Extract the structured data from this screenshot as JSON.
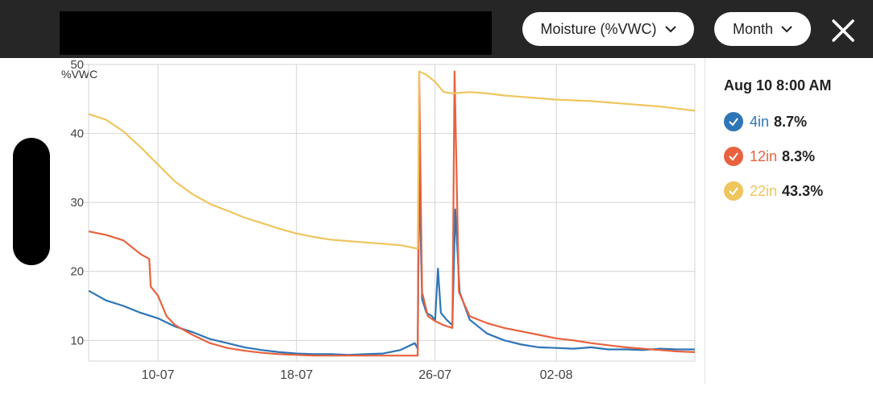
{
  "header": {
    "metric_label": "Moisture (%VWC)",
    "range_label": "Month",
    "icons": {
      "metric_chevron": "chevron-down-icon",
      "range_chevron": "chevron-down-icon",
      "close": "close-icon"
    }
  },
  "readout": {
    "time": "Aug 10 8:00 AM",
    "entries": [
      {
        "name": "4in",
        "value": "8.7%",
        "color": "#2e75b6"
      },
      {
        "name": "12in",
        "value": "8.3%",
        "color": "#e8623f"
      },
      {
        "name": "22in",
        "value": "43.3%",
        "color": "#efc55e"
      }
    ]
  },
  "chart_data": {
    "type": "line",
    "title": "",
    "xlabel": "",
    "ylabel": "%VWC",
    "x_ticks": [
      "10-07",
      "18-07",
      "26-07",
      "02-08"
    ],
    "x_tick_dates": [
      "2021-07-10",
      "2021-07-18",
      "2021-07-26",
      "2021-08-02"
    ],
    "xlim": [
      "2021-07-06",
      "2021-08-10"
    ],
    "ylim": [
      7,
      50
    ],
    "y_ticks": [
      10,
      20,
      30,
      40,
      50
    ],
    "grid": true,
    "legend": "right",
    "series": [
      {
        "name": "4in",
        "color": "#2e75b6",
        "points": [
          [
            "2021-07-06",
            17.2
          ],
          [
            "2021-07-07",
            15.8
          ],
          [
            "2021-07-08",
            15.0
          ],
          [
            "2021-07-09",
            14.0
          ],
          [
            "2021-07-10",
            13.2
          ],
          [
            "2021-07-11",
            12.0
          ],
          [
            "2021-07-12",
            11.2
          ],
          [
            "2021-07-13",
            10.2
          ],
          [
            "2021-07-14",
            9.6
          ],
          [
            "2021-07-15",
            9.0
          ],
          [
            "2021-07-16",
            8.6
          ],
          [
            "2021-07-17",
            8.3
          ],
          [
            "2021-07-18",
            8.1
          ],
          [
            "2021-07-19",
            8.0
          ],
          [
            "2021-07-20",
            8.0
          ],
          [
            "2021-07-21",
            7.9
          ],
          [
            "2021-07-22",
            8.0
          ],
          [
            "2021-07-23",
            8.1
          ],
          [
            "2021-07-24",
            8.6
          ],
          [
            "2021-07-24 20:00",
            9.6
          ],
          [
            "2021-07-25 00:00",
            8.8
          ],
          [
            "2021-07-25 02:00",
            35.0
          ],
          [
            "2021-07-25 06:00",
            16.0
          ],
          [
            "2021-07-25 12:00",
            14.0
          ],
          [
            "2021-07-25 20:00",
            13.5
          ],
          [
            "2021-07-26 00:00",
            12.8
          ],
          [
            "2021-07-26 04:00",
            20.4
          ],
          [
            "2021-07-26 08:00",
            14.0
          ],
          [
            "2021-07-26 16:00",
            13.0
          ],
          [
            "2021-07-27 00:00",
            12.2
          ],
          [
            "2021-07-27 04:00",
            29.0
          ],
          [
            "2021-07-27 10:00",
            17.0
          ],
          [
            "2021-07-28",
            13.0
          ],
          [
            "2021-07-29",
            11.0
          ],
          [
            "2021-07-30",
            10.0
          ],
          [
            "2021-07-31",
            9.4
          ],
          [
            "2021-08-01",
            9.0
          ],
          [
            "2021-08-02",
            8.9
          ],
          [
            "2021-08-03",
            8.8
          ],
          [
            "2021-08-04",
            9.0
          ],
          [
            "2021-08-05",
            8.7
          ],
          [
            "2021-08-06",
            8.7
          ],
          [
            "2021-08-07",
            8.6
          ],
          [
            "2021-08-08",
            8.8
          ],
          [
            "2021-08-09",
            8.7
          ],
          [
            "2021-08-10",
            8.7
          ]
        ]
      },
      {
        "name": "12in",
        "color": "#e8623f",
        "points": [
          [
            "2021-07-06",
            25.8
          ],
          [
            "2021-07-07",
            25.3
          ],
          [
            "2021-07-08",
            24.5
          ],
          [
            "2021-07-09",
            22.5
          ],
          [
            "2021-07-09 12:00",
            21.8
          ],
          [
            "2021-07-09 14:00",
            17.8
          ],
          [
            "2021-07-10",
            16.5
          ],
          [
            "2021-07-10 12:00",
            13.5
          ],
          [
            "2021-07-11",
            12.2
          ],
          [
            "2021-07-12",
            10.8
          ],
          [
            "2021-07-13",
            9.6
          ],
          [
            "2021-07-14",
            8.9
          ],
          [
            "2021-07-15",
            8.5
          ],
          [
            "2021-07-16",
            8.2
          ],
          [
            "2021-07-17",
            8.0
          ],
          [
            "2021-07-18",
            7.9
          ],
          [
            "2021-07-19",
            7.8
          ],
          [
            "2021-07-20",
            7.8
          ],
          [
            "2021-07-21",
            7.8
          ],
          [
            "2021-07-22",
            7.8
          ],
          [
            "2021-07-23",
            7.8
          ],
          [
            "2021-07-24",
            7.8
          ],
          [
            "2021-07-25 00:00",
            7.8
          ],
          [
            "2021-07-25 02:00",
            48.5
          ],
          [
            "2021-07-25 06:00",
            17.0
          ],
          [
            "2021-07-25 14:00",
            13.5
          ],
          [
            "2021-07-26 00:00",
            12.8
          ],
          [
            "2021-07-26 12:00",
            12.2
          ],
          [
            "2021-07-27 00:00",
            11.8
          ],
          [
            "2021-07-27 03:00",
            49.0
          ],
          [
            "2021-07-27 09:00",
            17.0
          ],
          [
            "2021-07-28",
            13.5
          ],
          [
            "2021-07-29",
            12.5
          ],
          [
            "2021-07-30",
            11.8
          ],
          [
            "2021-07-31",
            11.3
          ],
          [
            "2021-08-01",
            10.8
          ],
          [
            "2021-08-02",
            10.3
          ],
          [
            "2021-08-03",
            10.0
          ],
          [
            "2021-08-04",
            9.6
          ],
          [
            "2021-08-05",
            9.3
          ],
          [
            "2021-08-06",
            9.0
          ],
          [
            "2021-08-07",
            8.8
          ],
          [
            "2021-08-08",
            8.6
          ],
          [
            "2021-08-09",
            8.4
          ],
          [
            "2021-08-10",
            8.3
          ]
        ]
      },
      {
        "name": "22in",
        "color": "#efc55e",
        "points": [
          [
            "2021-07-06",
            42.8
          ],
          [
            "2021-07-07",
            42.0
          ],
          [
            "2021-07-08",
            40.3
          ],
          [
            "2021-07-09",
            38.0
          ],
          [
            "2021-07-10",
            35.5
          ],
          [
            "2021-07-11",
            33.0
          ],
          [
            "2021-07-12",
            31.2
          ],
          [
            "2021-07-13",
            29.8
          ],
          [
            "2021-07-14",
            28.8
          ],
          [
            "2021-07-15",
            27.8
          ],
          [
            "2021-07-16",
            27.0
          ],
          [
            "2021-07-17",
            26.2
          ],
          [
            "2021-07-18",
            25.5
          ],
          [
            "2021-07-19",
            25.0
          ],
          [
            "2021-07-20",
            24.6
          ],
          [
            "2021-07-21",
            24.4
          ],
          [
            "2021-07-22",
            24.2
          ],
          [
            "2021-07-23",
            24.0
          ],
          [
            "2021-07-24",
            23.8
          ],
          [
            "2021-07-25 00:00",
            23.3
          ],
          [
            "2021-07-25 02:00",
            49.0
          ],
          [
            "2021-07-25 12:00",
            48.5
          ],
          [
            "2021-07-26 00:00",
            47.5
          ],
          [
            "2021-07-26 12:00",
            46.0
          ],
          [
            "2021-07-27",
            45.8
          ],
          [
            "2021-07-28",
            46.0
          ],
          [
            "2021-07-29",
            45.8
          ],
          [
            "2021-07-30",
            45.5
          ],
          [
            "2021-07-31",
            45.3
          ],
          [
            "2021-08-01",
            45.1
          ],
          [
            "2021-08-02",
            44.9
          ],
          [
            "2021-08-03",
            44.8
          ],
          [
            "2021-08-04",
            44.7
          ],
          [
            "2021-08-05",
            44.5
          ],
          [
            "2021-08-06",
            44.3
          ],
          [
            "2021-08-07",
            44.1
          ],
          [
            "2021-08-08",
            43.9
          ],
          [
            "2021-08-09",
            43.6
          ],
          [
            "2021-08-10",
            43.3
          ]
        ]
      }
    ]
  }
}
